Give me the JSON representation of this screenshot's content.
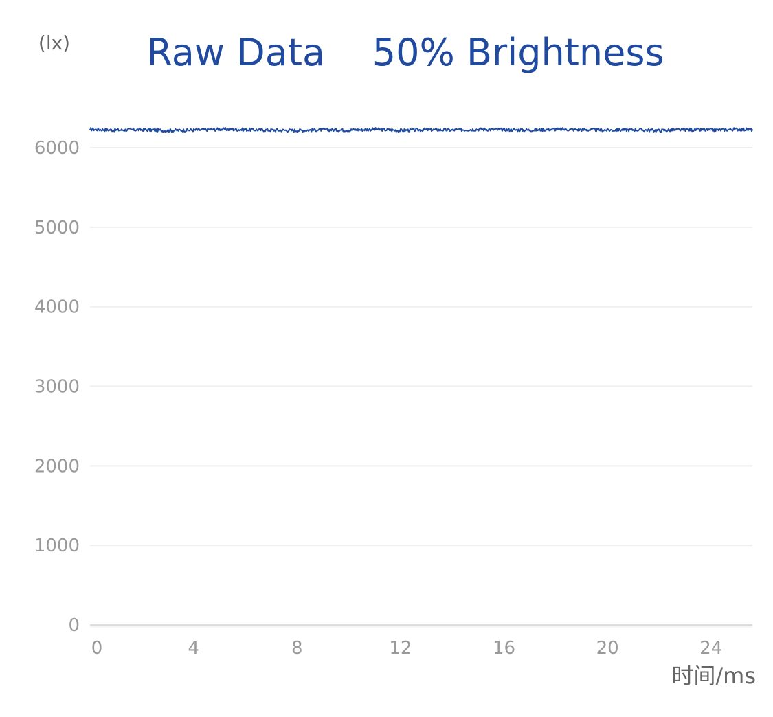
{
  "chart_data": {
    "type": "line",
    "title": "Raw Data    50% Brightness",
    "xlabel": "时间/ms",
    "ylabel": "(lx)",
    "xlim": [
      0,
      25.6
    ],
    "ylim": [
      0,
      6000
    ],
    "xticks": [
      0,
      4,
      8,
      12,
      16,
      20,
      24
    ],
    "xtick_labels": [
      "0",
      "4",
      "8",
      "12",
      "16",
      "20",
      "24"
    ],
    "yticks": [
      0,
      1000,
      2000,
      3000,
      4000,
      5000,
      6000
    ],
    "ytick_labels": [
      "0",
      "1000",
      "2000",
      "3000",
      "4000",
      "5000",
      "6000"
    ],
    "grid": true,
    "series": [
      {
        "color": "#1f4aa0",
        "x": [
          0,
          1,
          2,
          3,
          4,
          5,
          6,
          7,
          8,
          9,
          10,
          11,
          12,
          13,
          14,
          15,
          16,
          17,
          18,
          19,
          20,
          21,
          22,
          23,
          24,
          25,
          25.6
        ],
        "y": [
          6230,
          6220,
          6225,
          6215,
          6220,
          6230,
          6225,
          6220,
          6215,
          6225,
          6220,
          6230,
          6215,
          6225,
          6220,
          6230,
          6225,
          6220,
          6230,
          6225,
          6220,
          6225,
          6215,
          6225,
          6220,
          6230,
          6225
        ]
      }
    ]
  },
  "colors": {
    "title": "#1f4aa0",
    "tick_label": "#9a9a9a",
    "axis_title": "#666666",
    "grid": "#eeeeee",
    "axis_line": "#dddddd"
  }
}
